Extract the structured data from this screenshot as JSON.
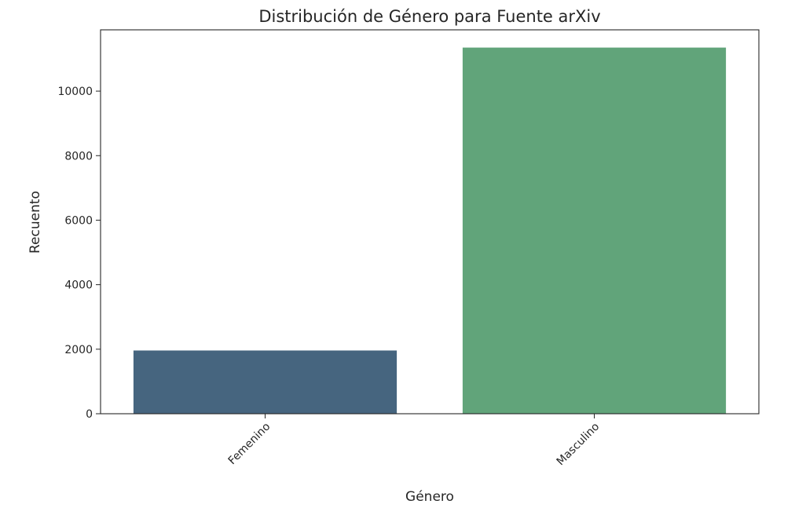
{
  "chart_data": {
    "type": "bar",
    "title": "Distribución de Género para Fuente arXiv",
    "xlabel": "Género",
    "ylabel": "Recuento",
    "categories": [
      "Femenino",
      "Masculino"
    ],
    "values": [
      1960,
      11350
    ],
    "colors": [
      "#46657f",
      "#61a47a"
    ],
    "ylim": [
      0,
      11900
    ],
    "yticks": [
      0,
      2000,
      4000,
      6000,
      8000,
      10000
    ],
    "xtick_rotation": 45,
    "grid": false,
    "legend": "none"
  }
}
